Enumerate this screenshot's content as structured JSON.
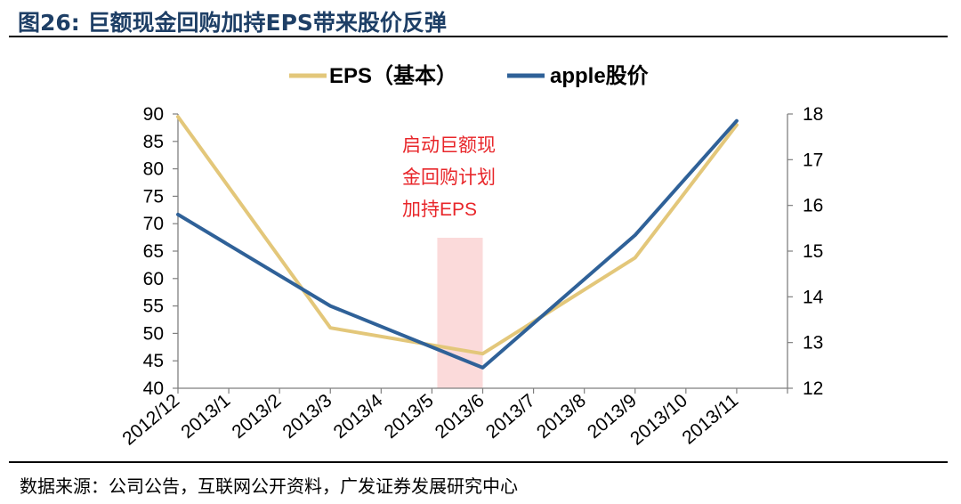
{
  "header": {
    "title": "图26:  巨额现金回购加持EPS带来股价反弹"
  },
  "footer": {
    "source": "数据来源：公司公告，互联网公开资料，广发证券发展研究中心"
  },
  "annotation": {
    "lines": [
      "启动巨额现",
      "金回购计划",
      "加持EPS"
    ],
    "color": "#e8262a",
    "highlight_color": "#fbdada",
    "highlight_range": [
      "2013/5",
      "2013/6"
    ]
  },
  "chart_data": {
    "type": "line",
    "categories": [
      "2012/12",
      "2013/1",
      "2013/2",
      "2013/3",
      "2013/4",
      "2013/5",
      "2013/6",
      "2013/7",
      "2013/8",
      "2013/9",
      "2013/10",
      "2013/11"
    ],
    "series": [
      {
        "name": "EPS（基本）",
        "axis": "left",
        "color": "#e3c77a",
        "values": [
          89.5,
          null,
          null,
          51,
          null,
          null,
          46.3,
          null,
          null,
          63.8,
          null,
          88
        ]
      },
      {
        "name": "apple股价",
        "axis": "right",
        "color": "#2f6198",
        "values": [
          15.8,
          null,
          null,
          13.8,
          null,
          null,
          12.45,
          null,
          null,
          15.35,
          null,
          17.85
        ]
      }
    ],
    "y_left": {
      "min": 40,
      "max": 90,
      "ticks": [
        90,
        85,
        80,
        75,
        70,
        65,
        60,
        55,
        50,
        45,
        40
      ]
    },
    "y_right": {
      "min": 12,
      "max": 18,
      "ticks": [
        18,
        17,
        16,
        15,
        14,
        13,
        12
      ]
    },
    "legend_position": "top-center",
    "grid": false
  }
}
